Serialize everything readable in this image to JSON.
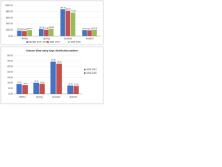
{
  "chart_data": [
    {
      "type": "bar",
      "categories": [
        "Winter",
        "Spring",
        "Summer",
        "Autumn"
      ],
      "series": [
        {
          "name": "Rainfall (1971-2010)",
          "color": "#4472c4",
          "values": [
            180.5,
            230.2,
            880.4,
            200.1
          ],
          "value_labels": [
            "180.50",
            "230.20",
            "880.40",
            "200.10"
          ]
        },
        {
          "name": "1981-2010",
          "color": "#c0504d",
          "values": [
            170.3,
            210.6,
            830.7,
            190.4
          ],
          "value_labels": [
            "170.30",
            "210.60",
            "830.70",
            "190.40"
          ]
        },
        {
          "name": "1991-2020",
          "color": "#9bbb59",
          "values": [
            200.2,
            240.8,
            770.3,
            210.5
          ],
          "value_labels": [
            "200.20",
            "240.80",
            "770.30",
            "210.50"
          ]
        }
      ],
      "ylim": [
        0,
        1000
      ],
      "yticks": [
        {
          "value": 0,
          "label": "0.00"
        },
        {
          "value": 200,
          "label": "200.00"
        },
        {
          "value": 400,
          "label": "400.00"
        },
        {
          "value": 600,
          "label": "600.00"
        },
        {
          "value": 800,
          "label": "800.00"
        },
        {
          "value": 1000,
          "label": "1000.00"
        }
      ],
      "legend": "bottom"
    },
    {
      "type": "bar",
      "title": "Season-Wise rainy days distribution pattern",
      "categories": [
        "Winter",
        "Spring",
        "Summer",
        "Autumn"
      ],
      "series": [
        {
          "name": "1981-2010",
          "color": "#4472c4",
          "values": [
            14.2,
            16.5,
            47.3,
            12.4
          ],
          "value_labels": [
            "14.20",
            "16.50",
            "47.30",
            "12.40"
          ]
        },
        {
          "name": "1991-2020",
          "color": "#c0504d",
          "values": [
            13.1,
            14.6,
            44.2,
            11.5
          ],
          "value_labels": [
            "13.10",
            "14.60",
            "44.20",
            "11.50"
          ]
        }
      ],
      "ylim": [
        0,
        56
      ],
      "yticks": [
        {
          "value": 0,
          "label": "0.00"
        },
        {
          "value": 8,
          "label": "8.00"
        },
        {
          "value": 16,
          "label": "16.00"
        },
        {
          "value": 24,
          "label": "24.00"
        },
        {
          "value": 32,
          "label": "32.00"
        },
        {
          "value": 40,
          "label": "40.00"
        },
        {
          "value": 48,
          "label": "48.00"
        },
        {
          "value": 56,
          "label": "56.00"
        }
      ],
      "legend": "right"
    }
  ]
}
